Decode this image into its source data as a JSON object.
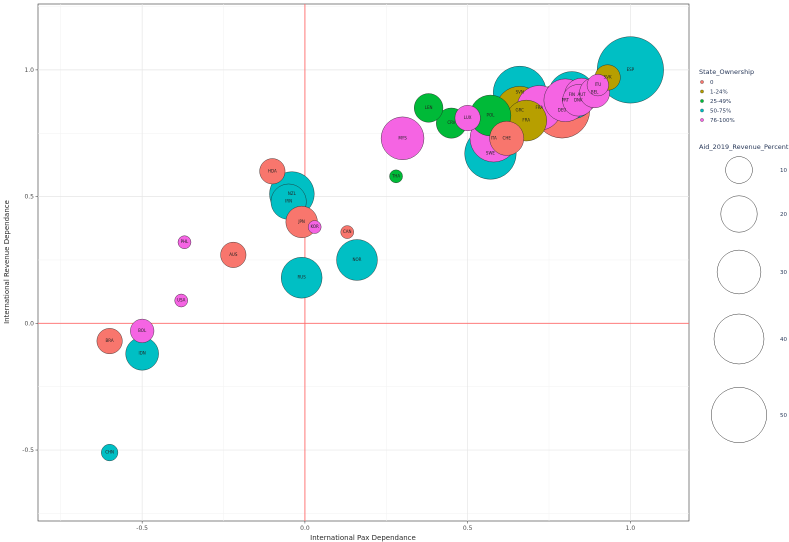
{
  "chart_data": {
    "type": "scatter",
    "title": "",
    "xlabel": "International Pax Dependance",
    "ylabel": "International Revenue Dependance",
    "xlim": [
      -0.82,
      1.18
    ],
    "ylim": [
      -0.78,
      1.26
    ],
    "x_ticks": [
      -0.5,
      0.0,
      0.5,
      1.0
    ],
    "x_tick_labels": [
      "-0.5",
      "0.0",
      "0.5",
      "1.0"
    ],
    "y_ticks": [
      -0.5,
      0.0,
      0.5,
      1.0
    ],
    "y_tick_labels": [
      "-0.5",
      "0.0",
      "0.5",
      "1.0"
    ],
    "reference_lines": {
      "x": 0,
      "y": 0,
      "color": "#ff6b6b"
    },
    "grid": true,
    "legend_placement": "right",
    "color_legend": {
      "title": "State_Ownership",
      "items": [
        {
          "label": "0",
          "color": "#F8766D"
        },
        {
          "label": "1-24%",
          "color": "#B79F00"
        },
        {
          "label": "25-49%",
          "color": "#00BA38"
        },
        {
          "label": "50-75%",
          "color": "#00BFC4"
        },
        {
          "label": "76-100%",
          "color": "#F564E3"
        }
      ]
    },
    "size_legend": {
      "title": "Aid_2019_Revenue_Percent",
      "items": [
        {
          "label": "10",
          "value": 10
        },
        {
          "label": "20",
          "value": 20
        },
        {
          "label": "30",
          "value": 30
        },
        {
          "label": "40",
          "value": 40
        },
        {
          "label": "50",
          "value": 50
        }
      ]
    },
    "points": [
      {
        "label": "ESP",
        "x": 1.0,
        "y": 1.0,
        "size": 52,
        "group": "50-75%"
      },
      {
        "label": "SVK",
        "x": 0.93,
        "y": 0.97,
        "size": 6,
        "group": "1-24%"
      },
      {
        "label": "ITU",
        "x": 0.9,
        "y": 0.94,
        "size": 4,
        "group": "76-100%"
      },
      {
        "label": "BEL",
        "x": 0.89,
        "y": 0.91,
        "size": 9,
        "group": "76-100%"
      },
      {
        "label": "AUT",
        "x": 0.85,
        "y": 0.9,
        "size": 12,
        "group": "76-100%"
      },
      {
        "label": "DNK",
        "x": 0.84,
        "y": 0.88,
        "size": 10,
        "group": "76-100%"
      },
      {
        "label": "FIN",
        "x": 0.82,
        "y": 0.9,
        "size": 25,
        "group": "50-75%"
      },
      {
        "label": "PRT",
        "x": 0.8,
        "y": 0.88,
        "size": 20,
        "group": "76-100%"
      },
      {
        "label": "DEU",
        "x": 0.79,
        "y": 0.84,
        "size": 35,
        "group": "0"
      },
      {
        "label": "SVN",
        "x": 0.66,
        "y": 0.91,
        "size": 32,
        "group": "50-75%"
      },
      {
        "label": "FRA",
        "x": 0.72,
        "y": 0.85,
        "size": 22,
        "group": "76-100%"
      },
      {
        "label": "GRC",
        "x": 0.66,
        "y": 0.84,
        "size": 26,
        "group": "1-24%"
      },
      {
        "label": "FRA",
        "x": 0.68,
        "y": 0.8,
        "size": 18,
        "group": "1-24%"
      },
      {
        "label": "POL",
        "x": 0.57,
        "y": 0.82,
        "size": 18,
        "group": "25-49%"
      },
      {
        "label": "ITA",
        "x": 0.58,
        "y": 0.73,
        "size": 25,
        "group": "76-100%"
      },
      {
        "label": "CHE",
        "x": 0.62,
        "y": 0.73,
        "size": 12,
        "group": "0"
      },
      {
        "label": "SWE",
        "x": 0.57,
        "y": 0.67,
        "size": 30,
        "group": "50-75%"
      },
      {
        "label": "LUX",
        "x": 0.5,
        "y": 0.81,
        "size": 6,
        "group": "76-100%"
      },
      {
        "label": "LEN",
        "x": 0.38,
        "y": 0.85,
        "size": 8,
        "group": "25-49%"
      },
      {
        "label": "CRV",
        "x": 0.45,
        "y": 0.79,
        "size": 9,
        "group": "25-49%"
      },
      {
        "label": "MYS",
        "x": 0.3,
        "y": 0.73,
        "size": 20,
        "group": "76-100%"
      },
      {
        "label": "THA",
        "x": 0.28,
        "y": 0.58,
        "size": 1,
        "group": "25-49%"
      },
      {
        "label": "HDA",
        "x": -0.1,
        "y": 0.6,
        "size": 6,
        "group": "0"
      },
      {
        "label": "NZL",
        "x": -0.04,
        "y": 0.51,
        "size": 22,
        "group": "50-75%"
      },
      {
        "label": "IRN",
        "x": -0.05,
        "y": 0.48,
        "size": 13,
        "group": "50-75%"
      },
      {
        "label": "JPN",
        "x": -0.01,
        "y": 0.4,
        "size": 10,
        "group": "0"
      },
      {
        "label": "KOR",
        "x": 0.03,
        "y": 0.38,
        "size": 1,
        "group": "76-100%"
      },
      {
        "label": "CAN",
        "x": 0.13,
        "y": 0.36,
        "size": 1,
        "group": "0"
      },
      {
        "label": "NOR",
        "x": 0.16,
        "y": 0.25,
        "size": 18,
        "group": "50-75%"
      },
      {
        "label": "PHL",
        "x": -0.37,
        "y": 0.32,
        "size": 1,
        "group": "76-100%"
      },
      {
        "label": "AUS",
        "x": -0.22,
        "y": 0.27,
        "size": 6,
        "group": "0"
      },
      {
        "label": "RUS",
        "x": -0.01,
        "y": 0.18,
        "size": 18,
        "group": "50-75%"
      },
      {
        "label": "USA",
        "x": -0.38,
        "y": 0.09,
        "size": 1,
        "group": "76-100%"
      },
      {
        "label": "BOL",
        "x": -0.5,
        "y": -0.03,
        "size": 5,
        "group": "76-100%"
      },
      {
        "label": "BRA",
        "x": -0.6,
        "y": -0.07,
        "size": 6,
        "group": "0"
      },
      {
        "label": "IDN",
        "x": -0.5,
        "y": -0.12,
        "size": 11,
        "group": "50-75%"
      },
      {
        "label": "CHN",
        "x": -0.6,
        "y": -0.51,
        "size": 2,
        "group": "50-75%"
      }
    ]
  }
}
